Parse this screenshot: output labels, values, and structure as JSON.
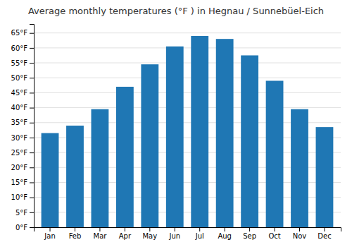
{
  "chart_data": {
    "type": "bar",
    "title": "Average monthly temperatures (°F ) in Hegnau / Sunnebüel-Eich",
    "categories": [
      "Jan",
      "Feb",
      "Mar",
      "Apr",
      "May",
      "Jun",
      "Jul",
      "Aug",
      "Sep",
      "Oct",
      "Nov",
      "Dec"
    ],
    "values": [
      31.5,
      34.0,
      39.5,
      47.0,
      54.5,
      60.5,
      64.0,
      63.0,
      57.5,
      49.0,
      39.5,
      33.5
    ],
    "ylim": [
      0,
      68
    ],
    "yticks": [
      {
        "value": 0,
        "label": "0°F"
      },
      {
        "value": 5,
        "label": "5°F"
      },
      {
        "value": 10,
        "label": "10°F"
      },
      {
        "value": 15,
        "label": "15°F"
      },
      {
        "value": 20,
        "label": "20°F"
      },
      {
        "value": 25,
        "label": "25°F"
      },
      {
        "value": 30,
        "label": "30°F"
      },
      {
        "value": 35,
        "label": "35°F"
      },
      {
        "value": 40,
        "label": "40°F"
      },
      {
        "value": 45,
        "label": "45°F"
      },
      {
        "value": 50,
        "label": "50°F"
      },
      {
        "value": 55,
        "label": "55°F"
      },
      {
        "value": 60,
        "label": "60°F"
      },
      {
        "value": 65,
        "label": "65°F"
      }
    ],
    "grid": true
  }
}
